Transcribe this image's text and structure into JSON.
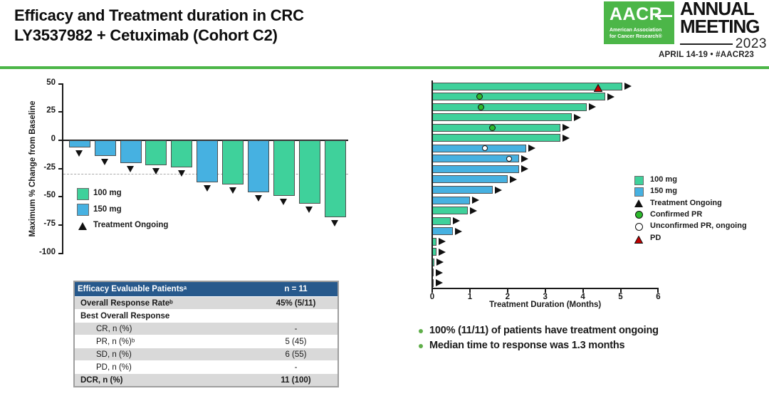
{
  "header": {
    "title_line1": "Efficacy and Treatment duration in CRC",
    "title_line2": "LY3537982 + Cetuximab (Cohort C2)",
    "logo": {
      "acronym": "AACR",
      "org_line1": "American Association",
      "org_line2": "for Cancer Research®",
      "meeting_line1": "ANNUAL",
      "meeting_line2": "MEETING",
      "year": "2023",
      "date_line": "APRIL 14-19 • #AACR23"
    }
  },
  "colors": {
    "green_100mg": "#3fd19b",
    "blue_150mg": "#46b1e1",
    "marker_black": "#111111",
    "confirmed_pr_green": "#2db92d",
    "unconfirmed_pr_white": "#ffffff",
    "pd_red": "#c00000",
    "brand_green": "#4cb648",
    "bullet_green": "#5fae49",
    "table_header_bg": "#27598c",
    "table_shaded_bg": "#d9d9d9"
  },
  "chart_data": [
    {
      "type": "bar",
      "name": "waterfall",
      "title": "",
      "xlabel": "",
      "ylabel": "Maximum % Change from Baseline",
      "ylim": [
        -100,
        50
      ],
      "yticks": [
        50,
        25,
        0,
        -25,
        -50,
        -75,
        -100
      ],
      "reference_line_y": -30,
      "patients": [
        {
          "change": -6,
          "dose": "150 mg",
          "ongoing": true
        },
        {
          "change": -14,
          "dose": "150 mg",
          "ongoing": true
        },
        {
          "change": -20,
          "dose": "150 mg",
          "ongoing": true
        },
        {
          "change": -22,
          "dose": "100 mg",
          "ongoing": true
        },
        {
          "change": -24,
          "dose": "100 mg",
          "ongoing": true
        },
        {
          "change": -37,
          "dose": "150 mg",
          "ongoing": true
        },
        {
          "change": -39,
          "dose": "100 mg",
          "ongoing": true
        },
        {
          "change": -46,
          "dose": "150 mg",
          "ongoing": true
        },
        {
          "change": -49,
          "dose": "100 mg",
          "ongoing": true
        },
        {
          "change": -56,
          "dose": "100 mg",
          "ongoing": true
        },
        {
          "change": -68,
          "dose": "100 mg",
          "ongoing": true
        }
      ],
      "legend": [
        {
          "label": "100 mg",
          "marker": "square",
          "color": "#3fd19b"
        },
        {
          "label": "150 mg",
          "marker": "square",
          "color": "#46b1e1"
        },
        {
          "label": "Treatment Ongoing",
          "marker": "triangle-up",
          "color": "#111111"
        }
      ]
    },
    {
      "type": "bar",
      "name": "swimmer",
      "title": "",
      "xlabel": "Treatment Duration (Months)",
      "ylabel": "",
      "xlim": [
        0,
        6
      ],
      "xticks": [
        0,
        1,
        2,
        3,
        4,
        5,
        6
      ],
      "patients": [
        {
          "duration": 5.05,
          "dose": "100 mg",
          "ongoing": true,
          "events": [
            {
              "type": "PD",
              "month": 4.4
            }
          ]
        },
        {
          "duration": 4.6,
          "dose": "100 mg",
          "ongoing": true,
          "events": [
            {
              "type": "Confirmed PR",
              "month": 1.25
            }
          ]
        },
        {
          "duration": 4.1,
          "dose": "100 mg",
          "ongoing": true,
          "events": [
            {
              "type": "Confirmed PR",
              "month": 1.3
            }
          ]
        },
        {
          "duration": 3.7,
          "dose": "100 mg",
          "ongoing": true,
          "events": []
        },
        {
          "duration": 3.4,
          "dose": "100 mg",
          "ongoing": true,
          "events": [
            {
              "type": "Confirmed PR",
              "month": 1.6
            }
          ]
        },
        {
          "duration": 3.4,
          "dose": "100 mg",
          "ongoing": true,
          "events": []
        },
        {
          "duration": 2.5,
          "dose": "150 mg",
          "ongoing": true,
          "events": [
            {
              "type": "Unconfirmed PR, ongoing",
              "month": 1.4
            }
          ]
        },
        {
          "duration": 2.3,
          "dose": "150 mg",
          "ongoing": true,
          "events": [
            {
              "type": "Unconfirmed PR, ongoing",
              "month": 2.05
            }
          ]
        },
        {
          "duration": 2.3,
          "dose": "150 mg",
          "ongoing": true,
          "events": []
        },
        {
          "duration": 2.0,
          "dose": "150 mg",
          "ongoing": true,
          "events": []
        },
        {
          "duration": 1.6,
          "dose": "150 mg",
          "ongoing": true,
          "events": []
        },
        {
          "duration": 1.0,
          "dose": "150 mg",
          "ongoing": true,
          "events": []
        },
        {
          "duration": 0.95,
          "dose": "100 mg",
          "ongoing": true,
          "events": []
        },
        {
          "duration": 0.5,
          "dose": "100 mg",
          "ongoing": true,
          "events": []
        },
        {
          "duration": 0.55,
          "dose": "150 mg",
          "ongoing": true,
          "events": []
        },
        {
          "duration": 0.12,
          "dose": "100 mg",
          "ongoing": true,
          "events": []
        },
        {
          "duration": 0.12,
          "dose": "100 mg",
          "ongoing": true,
          "events": []
        },
        {
          "duration": 0.06,
          "dose": "100 mg",
          "ongoing": true,
          "events": []
        },
        {
          "duration": 0.03,
          "dose": "100 mg",
          "ongoing": true,
          "events": []
        },
        {
          "duration": 0.03,
          "dose": "100 mg",
          "ongoing": true,
          "events": []
        }
      ],
      "legend": [
        {
          "label": "100 mg",
          "marker": "square",
          "color": "#3fd19b"
        },
        {
          "label": "150 mg",
          "marker": "square",
          "color": "#46b1e1"
        },
        {
          "label": "Treatment Ongoing",
          "marker": "triangle-up",
          "color": "#111111"
        },
        {
          "label": "Confirmed PR",
          "marker": "circle",
          "color": "#2db92d"
        },
        {
          "label": "Unconfirmed PR, ongoing",
          "marker": "circle",
          "color": "#ffffff"
        },
        {
          "label": "PD",
          "marker": "triangle-up",
          "color": "#c00000"
        }
      ]
    }
  ],
  "table": {
    "header": {
      "label": "Efficacy Evaluable Patientsᵃ",
      "value": "n = 11"
    },
    "rows": [
      {
        "label": "Overall Response Rateᵇ",
        "value": "45% (5/11)",
        "bold": true,
        "shaded": true,
        "indent": false
      },
      {
        "label": "Best Overall Response",
        "value": "",
        "bold": true,
        "shaded": false,
        "indent": false
      },
      {
        "label": "CR, n (%)",
        "value": "-",
        "bold": false,
        "shaded": true,
        "indent": true
      },
      {
        "label": "PR, n (%)ᵇ",
        "value": "5 (45)",
        "bold": false,
        "shaded": false,
        "indent": true
      },
      {
        "label": "SD, n (%)",
        "value": "6 (55)",
        "bold": false,
        "shaded": true,
        "indent": true
      },
      {
        "label": "PD, n (%)",
        "value": "-",
        "bold": false,
        "shaded": false,
        "indent": true
      },
      {
        "label": "DCR, n (%)",
        "value": "11 (100)",
        "bold": true,
        "shaded": true,
        "indent": false
      }
    ]
  },
  "bullets": [
    "100% (11/11) of patients have treatment ongoing",
    "Median time to response was 1.3 months"
  ]
}
